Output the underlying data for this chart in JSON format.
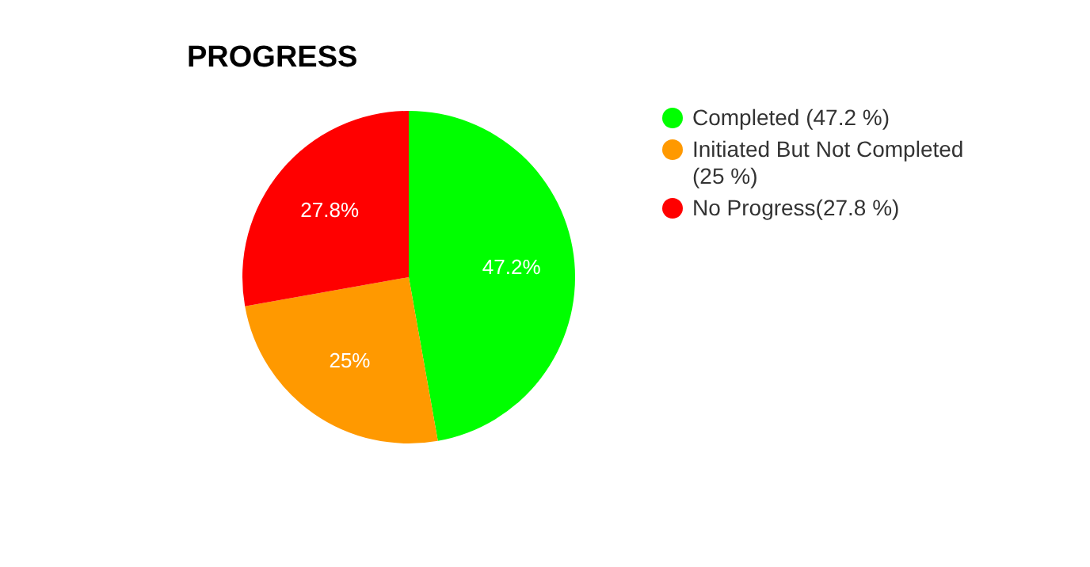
{
  "chart_data": {
    "type": "pie",
    "title": "PROGRESS",
    "categories": [
      "Completed (47.2 %)",
      "Initiated But Not Completed (25 %)",
      "No Progress(27.8 %)"
    ],
    "values": [
      47.2,
      25,
      27.8
    ],
    "colors": [
      "#00ff00",
      "#ff9900",
      "#ff0000"
    ],
    "value_labels": [
      "47.2%",
      "25%",
      "27.8%"
    ],
    "legend": "top right"
  }
}
